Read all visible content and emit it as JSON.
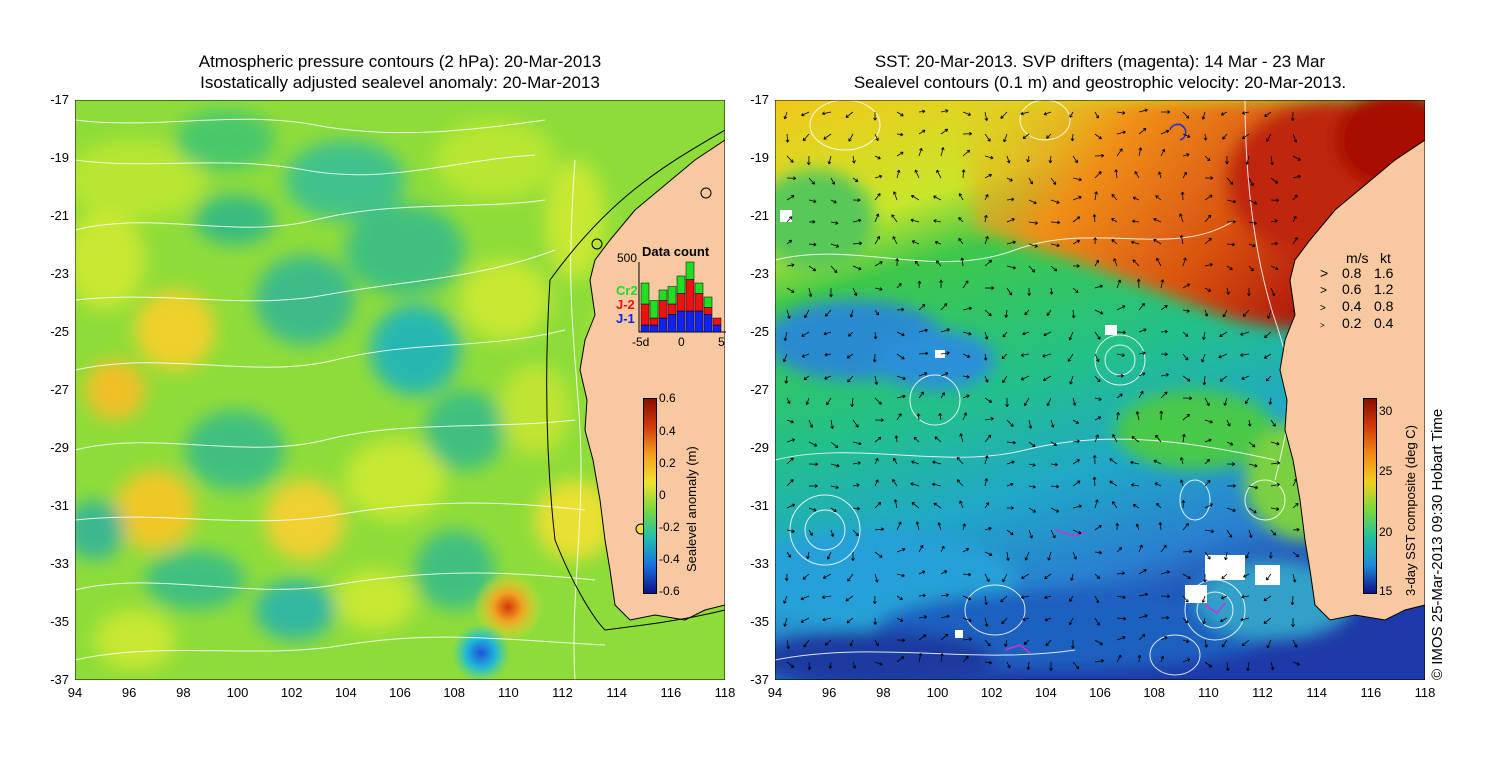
{
  "left_panel": {
    "title_line1": "Atmospheric pressure contours (2 hPa): 20-Mar-2013",
    "title_line2": "Isostatically adjusted sealevel anomaly: 20-Mar-2013",
    "colorbar": {
      "label": "Sealevel anomaly (m)",
      "ticks": [
        "0.6",
        "0.4",
        "0.2",
        "0",
        "-0.2",
        "-0.4",
        "-0.6"
      ]
    },
    "data_count": {
      "title": "Data count",
      "y_tick": "500",
      "x_ticks": [
        "-5d",
        "0",
        "5"
      ],
      "series": [
        {
          "name": "Cr2",
          "color": "#22dd22"
        },
        {
          "name": "J-2",
          "color": "#ee1111"
        },
        {
          "name": "J-1",
          "color": "#1122ee"
        }
      ],
      "bars": [
        {
          "j1": 0.1,
          "j2": 0.3,
          "cr2": 0.3
        },
        {
          "j1": 0.1,
          "j2": 0.1,
          "cr2": 0.25
        },
        {
          "j1": 0.2,
          "j2": 0.25,
          "cr2": 0.15
        },
        {
          "j1": 0.25,
          "j2": 0.15,
          "cr2": 0.25
        },
        {
          "j1": 0.3,
          "j2": 0.25,
          "cr2": 0.25
        },
        {
          "j1": 0.3,
          "j2": 0.45,
          "cr2": 0.25
        },
        {
          "j1": 0.3,
          "j2": 0.25,
          "cr2": 0.15
        },
        {
          "j1": 0.25,
          "j2": 0.1,
          "cr2": 0.15
        },
        {
          "j1": 0.1,
          "j2": 0.1,
          "cr2": 0.0
        }
      ]
    }
  },
  "right_panel": {
    "title_line1": "SST: 20-Mar-2013. SVP drifters (magenta): 14 Mar - 23 Mar",
    "title_line2": "Sealevel contours (0.1 m) and geostrophic velocity: 20-Mar-2013.",
    "colorbar": {
      "label": "3-day SST composite (deg C)",
      "ticks": [
        "30",
        "25",
        "20",
        "15"
      ]
    },
    "velocity_legend": {
      "header_ms": "m/s",
      "header_kt": "kt",
      "rows": [
        {
          "ms": "0.8",
          "kt": "1.6"
        },
        {
          "ms": "0.6",
          "kt": "1.2"
        },
        {
          "ms": "0.4",
          "kt": "0.8"
        },
        {
          "ms": "0.2",
          "kt": "0.4"
        }
      ]
    }
  },
  "axes": {
    "y_ticks": [
      "-17",
      "-19",
      "-21",
      "-23",
      "-25",
      "-27",
      "-29",
      "-31",
      "-33",
      "-35",
      "-37"
    ],
    "x_ticks": [
      "94",
      "96",
      "98",
      "100",
      "102",
      "104",
      "106",
      "108",
      "110",
      "112",
      "114",
      "116",
      "118"
    ]
  },
  "copyright": "© IMOS 25-Mar-2013 09:30 Hobart Time",
  "colors": {
    "land": "#f8c9a0",
    "sla_base": "#8edc3a",
    "sst_warm": "#c0300a",
    "sst_cold": "#2a7fd0"
  }
}
